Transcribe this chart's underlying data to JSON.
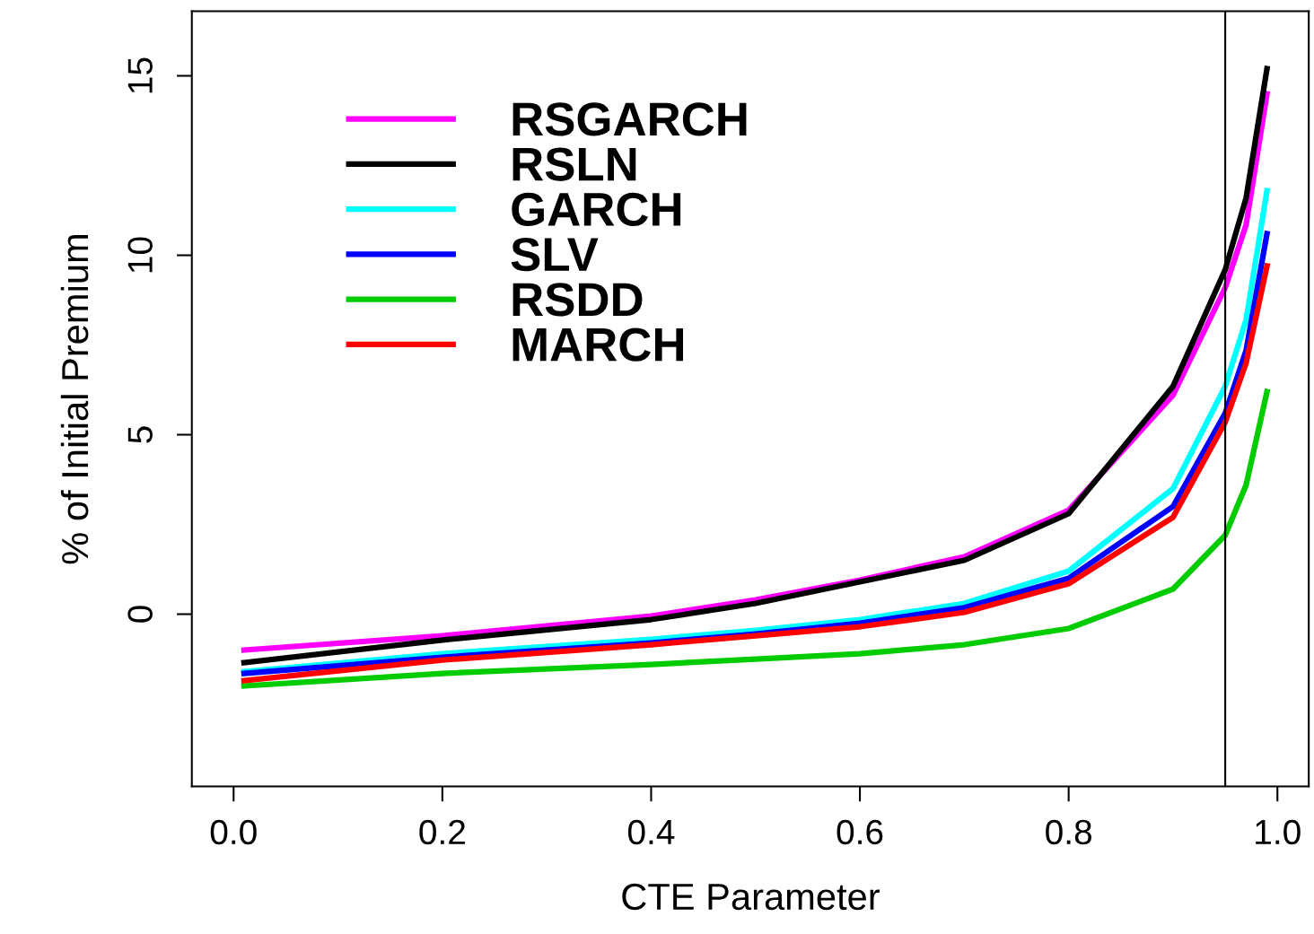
{
  "chart_data": {
    "type": "line",
    "xlabel": "CTE Parameter",
    "ylabel": "% of Initial Premium",
    "x": [
      0.01,
      0.2,
      0.4,
      0.5,
      0.6,
      0.7,
      0.8,
      0.9,
      0.95,
      0.97,
      0.99
    ],
    "series": [
      {
        "name": "RSGARCH",
        "color": "#ff00ff",
        "values": [
          -1.0,
          -0.6,
          -0.05,
          0.4,
          0.95,
          1.6,
          2.9,
          6.1,
          9.1,
          10.85,
          14.5
        ]
      },
      {
        "name": "RSLN",
        "color": "#000000",
        "values": [
          -1.35,
          -0.72,
          -0.15,
          0.3,
          0.9,
          1.5,
          2.8,
          6.35,
          9.6,
          11.6,
          15.2
        ]
      },
      {
        "name": "GARCH",
        "color": "#00ffff",
        "values": [
          -1.6,
          -1.1,
          -0.7,
          -0.45,
          -0.15,
          0.3,
          1.2,
          3.5,
          6.35,
          8.2,
          11.8
        ]
      },
      {
        "name": "SLV",
        "color": "#0000ff",
        "values": [
          -1.65,
          -1.2,
          -0.8,
          -0.55,
          -0.25,
          0.18,
          1.0,
          3.0,
          5.6,
          7.35,
          10.6
        ]
      },
      {
        "name": "RSDD",
        "color": "#00cc00",
        "values": [
          -2.0,
          -1.65,
          -1.4,
          -1.25,
          -1.1,
          -0.85,
          -0.4,
          0.7,
          2.2,
          3.6,
          6.2
        ]
      },
      {
        "name": "MARCH",
        "color": "#ff0000",
        "values": [
          -1.85,
          -1.28,
          -0.85,
          -0.6,
          -0.35,
          0.05,
          0.85,
          2.7,
          5.35,
          7.0,
          9.7
        ]
      }
    ],
    "xlim": [
      -0.04,
      1.03
    ],
    "ylim": [
      -4.8,
      16.8
    ],
    "xticks": [
      {
        "value": 0,
        "label": "0.0"
      },
      0.2,
      0.4,
      0.6,
      0.8,
      {
        "value": 1,
        "label": "1.0"
      }
    ],
    "yticks": [
      0,
      5,
      10,
      15
    ],
    "ref_lines": [
      {
        "axis": "x",
        "value": 0.95,
        "color": "#000000"
      }
    ],
    "grid": false,
    "legend": "top left",
    "marker": "none",
    "line_style": "solid"
  }
}
